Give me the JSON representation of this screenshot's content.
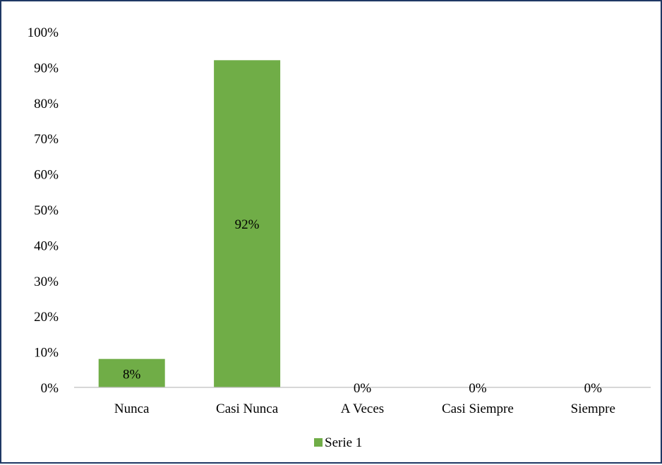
{
  "chart_data": {
    "type": "bar",
    "categories": [
      "Nunca",
      "Casi Nunca",
      "A Veces",
      "Casi Siempre",
      "Siempre"
    ],
    "series": [
      {
        "name": "Serie 1",
        "values": [
          8,
          92,
          0,
          0,
          0
        ],
        "color": "#70AD47"
      }
    ],
    "data_labels": [
      "8%",
      "92%",
      "0%",
      "0%",
      "0%"
    ],
    "y_ticks": [
      "0%",
      "10%",
      "20%",
      "30%",
      "40%",
      "50%",
      "60%",
      "70%",
      "80%",
      "90%",
      "100%"
    ],
    "ylim": [
      0,
      100
    ],
    "grid": false,
    "legend_position": "bottom",
    "colors": {
      "border": "#1F3864",
      "axis": "#BFBFBF",
      "bar": "#70AD47"
    }
  }
}
